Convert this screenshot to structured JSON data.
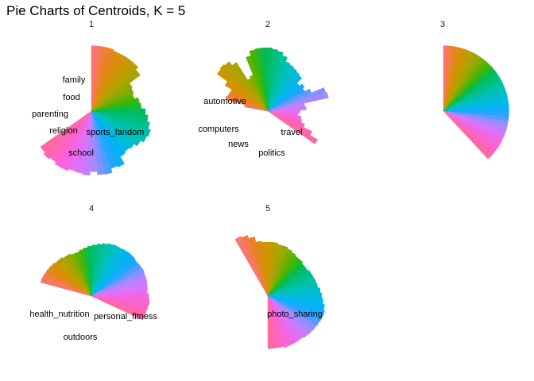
{
  "figure": {
    "title": "Pie Charts of Centroids, K = 5"
  },
  "palette": [
    "#F8766D",
    "#E7851E",
    "#D09400",
    "#B2A100",
    "#89AC00",
    "#45B500",
    "#00BC51",
    "#00C087",
    "#00C0B2",
    "#00BCD6",
    "#00B3F2",
    "#29A3FF",
    "#9C8DFF",
    "#D277FF",
    "#F166E8",
    "#FF61C7",
    "#FF689E"
  ],
  "chart_data": [
    {
      "type": "pie",
      "panel": "1",
      "labels": [
        "family",
        "food",
        "parenting",
        "religion",
        "sports_fandom",
        "school"
      ],
      "radius": [
        0.97,
        0.97,
        0.97,
        0.95,
        0.95,
        0.95,
        0.95,
        0.9,
        0.7,
        0.68,
        0.66,
        0.72,
        0.74,
        0.8,
        0.84,
        0.88,
        0.92,
        0.9,
        0.85,
        0.8,
        0.78,
        0.8,
        0.92,
        0.9,
        0.96,
        0.95,
        0.9,
        0.95,
        0.93,
        0.92,
        0.95,
        0.95,
        0.92,
        0.95,
        0.92
      ]
    },
    {
      "type": "pie",
      "panel": "2",
      "labels": [
        "automotive",
        "computers",
        "news",
        "travel",
        "politics"
      ],
      "radius": [
        0.35,
        0.65,
        0.63,
        0.62,
        0.74,
        0.93,
        0.95,
        0.93,
        0.86,
        0.55,
        0.58,
        0.86,
        0.93,
        0.94,
        0.94,
        0.94,
        0.92,
        0.9,
        0.85,
        0.78,
        0.76,
        0.74,
        0.72,
        0.7,
        0.6,
        0.65,
        0.62,
        0.7,
        0.9,
        0.92,
        0.55,
        0.57,
        0.48,
        0.45,
        0.5,
        0.52,
        0.58,
        0.72,
        0.85
      ]
    },
    {
      "type": "pie",
      "panel": "3",
      "labels": [],
      "radius": [
        0.97,
        0.97,
        0.97,
        0.97,
        0.97,
        0.97,
        0.97,
        0.97,
        0.97,
        0.97,
        0.97,
        0.97,
        0.97,
        0.97,
        0.97,
        0.97,
        0.97,
        0.97,
        0.97,
        0.97,
        0.97,
        0.97,
        0.97,
        0.97,
        0.97,
        0.97,
        0.97,
        0.97,
        0.97,
        0.97,
        0.97,
        0.97,
        0.97,
        0.97,
        0.97,
        0.97
      ]
    },
    {
      "type": "pie",
      "panel": "4",
      "labels": [
        "health_nutrition",
        "outdoors",
        "personal_fitness"
      ],
      "radius": [
        0.78,
        0.77,
        0.76,
        0.75,
        0.74,
        0.72,
        0.72,
        0.7,
        0.7,
        0.68,
        0.68,
        0.7,
        0.72,
        0.74,
        0.76,
        0.78,
        0.8,
        0.82,
        0.83,
        0.83,
        0.84,
        0.85,
        0.85,
        0.84,
        0.85,
        0.86,
        0.85,
        0.85,
        0.84,
        0.83,
        0.85,
        0.86,
        0.85,
        0.84,
        0.84
      ]
    },
    {
      "type": "pie",
      "panel": "5",
      "labels": [
        "photo_sharing"
      ],
      "radius": [
        0.97,
        0.95,
        0.9,
        0.82,
        0.8,
        0.8,
        0.8,
        0.78,
        0.78,
        0.76,
        0.74,
        0.72,
        0.72,
        0.7,
        0.7,
        0.72,
        0.73,
        0.74,
        0.75,
        0.78,
        0.8,
        0.82,
        0.85,
        0.87,
        0.86,
        0.85,
        0.84,
        0.83,
        0.82,
        0.8,
        0.8,
        0.8,
        0.8,
        0.78,
        0.78,
        0.78
      ]
    }
  ]
}
